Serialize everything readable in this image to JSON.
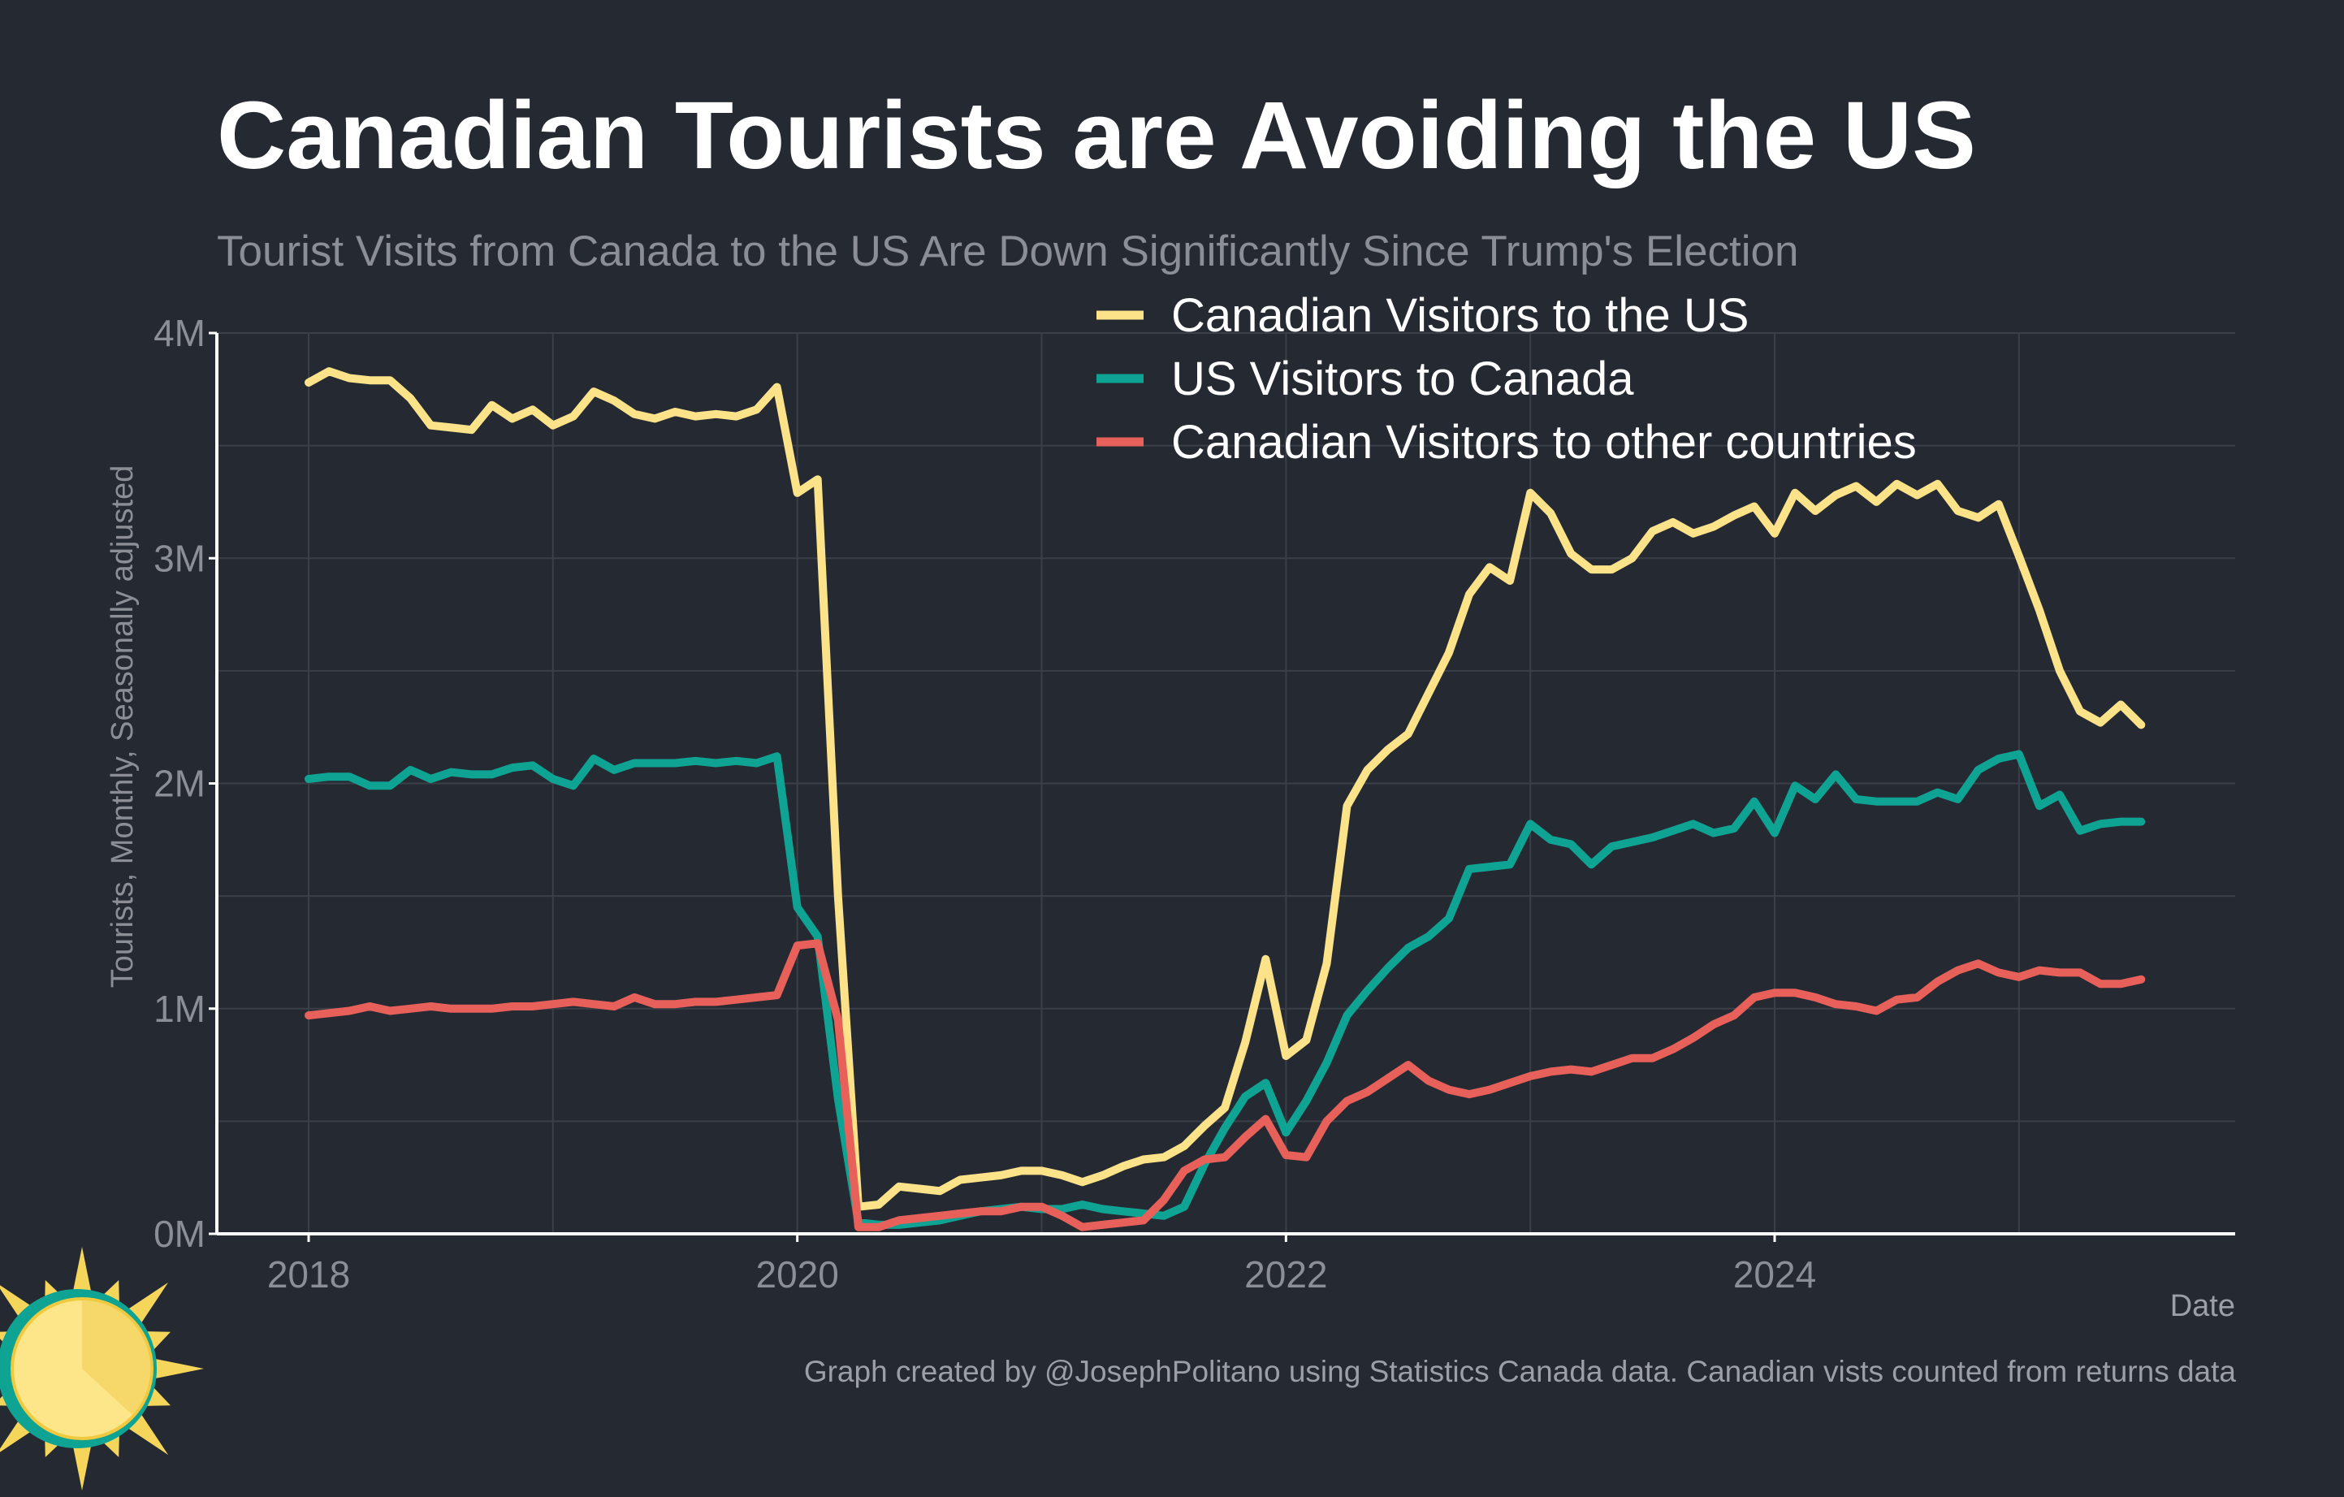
{
  "title": "Canadian Tourists are Avoiding the US",
  "subtitle": "Tourist Visits from Canada to the US Are Down Significantly Since Trump's Election",
  "caption": "Graph created by @JosephPolitano using Statistics Canada data. Canadian vists counted from returns data",
  "logo_icon": "sun-icon",
  "colors": {
    "background": "#252932",
    "grid": "#3b3f48",
    "axis": "#ffffff",
    "canada_to_us": "#fce38a",
    "us_to_canada": "#0fa394",
    "canada_to_other": "#e8605a"
  },
  "chart_data": {
    "type": "line",
    "xlabel": "Date",
    "ylabel": "Tourists, Monthly, Seasonally adjusted",
    "ylim": [
      0,
      4000000
    ],
    "yticks": [
      0,
      1000000,
      2000000,
      3000000,
      4000000
    ],
    "ytick_labels": [
      "0M",
      "1M",
      "2M",
      "3M",
      "4M"
    ],
    "xticks": [
      "2018-01",
      "2020-01",
      "2022-01",
      "2024-01"
    ],
    "xtick_labels": [
      "2018",
      "2020",
      "2022",
      "2024"
    ],
    "grid": true,
    "legend_position": "top-right",
    "x_start": "2018-01",
    "x_end": "2025-06",
    "x_frequency": "monthly",
    "series": [
      {
        "name": "Canadian Visitors to the US",
        "color": "#fce38a",
        "values": [
          3780000,
          3830000,
          3800000,
          3790000,
          3790000,
          3710000,
          3590000,
          3580000,
          3570000,
          3680000,
          3620000,
          3660000,
          3590000,
          3630000,
          3740000,
          3700000,
          3640000,
          3620000,
          3650000,
          3630000,
          3640000,
          3630000,
          3660000,
          3760000,
          3290000,
          3350000,
          1500000,
          120000,
          130000,
          210000,
          200000,
          190000,
          240000,
          250000,
          260000,
          280000,
          280000,
          260000,
          230000,
          260000,
          300000,
          330000,
          340000,
          390000,
          480000,
          560000,
          850000,
          1220000,
          790000,
          860000,
          1200000,
          1900000,
          2060000,
          2150000,
          2220000,
          2400000,
          2580000,
          2840000,
          2960000,
          2900000,
          3290000,
          3200000,
          3020000,
          2950000,
          2950000,
          3000000,
          3120000,
          3160000,
          3110000,
          3140000,
          3190000,
          3230000,
          3110000,
          3290000,
          3210000,
          3280000,
          3320000,
          3250000,
          3330000,
          3280000,
          3330000,
          3210000,
          3180000,
          3240000,
          3010000,
          2770000,
          2500000,
          2320000,
          2270000,
          2350000,
          2260000
        ]
      },
      {
        "name": "US Visitors to Canada",
        "color": "#0fa394",
        "values": [
          2020000,
          2030000,
          2030000,
          1990000,
          1990000,
          2060000,
          2020000,
          2050000,
          2040000,
          2040000,
          2070000,
          2080000,
          2020000,
          1990000,
          2110000,
          2060000,
          2090000,
          2090000,
          2090000,
          2100000,
          2090000,
          2100000,
          2090000,
          2120000,
          1450000,
          1320000,
          600000,
          50000,
          40000,
          40000,
          50000,
          60000,
          80000,
          100000,
          110000,
          120000,
          110000,
          110000,
          130000,
          110000,
          100000,
          90000,
          80000,
          120000,
          310000,
          470000,
          610000,
          670000,
          450000,
          590000,
          760000,
          970000,
          1080000,
          1180000,
          1270000,
          1320000,
          1400000,
          1620000,
          1630000,
          1640000,
          1820000,
          1750000,
          1730000,
          1640000,
          1720000,
          1740000,
          1760000,
          1790000,
          1820000,
          1780000,
          1800000,
          1920000,
          1780000,
          1990000,
          1930000,
          2040000,
          1930000,
          1920000,
          1920000,
          1920000,
          1960000,
          1930000,
          2060000,
          2110000,
          2130000,
          1900000,
          1950000,
          1790000,
          1820000,
          1830000,
          1830000
        ]
      },
      {
        "name": "Canadian Visitors to other countries",
        "color": "#e8605a",
        "values": [
          970000,
          980000,
          990000,
          1010000,
          990000,
          1000000,
          1010000,
          1000000,
          1000000,
          1000000,
          1010000,
          1010000,
          1020000,
          1030000,
          1020000,
          1010000,
          1050000,
          1020000,
          1020000,
          1030000,
          1030000,
          1040000,
          1050000,
          1060000,
          1280000,
          1290000,
          950000,
          30000,
          30000,
          60000,
          70000,
          80000,
          90000,
          100000,
          100000,
          120000,
          120000,
          80000,
          30000,
          40000,
          50000,
          60000,
          150000,
          280000,
          330000,
          340000,
          430000,
          510000,
          350000,
          340000,
          500000,
          590000,
          630000,
          690000,
          750000,
          680000,
          640000,
          620000,
          640000,
          670000,
          700000,
          720000,
          730000,
          720000,
          750000,
          780000,
          780000,
          820000,
          870000,
          930000,
          970000,
          1050000,
          1070000,
          1070000,
          1050000,
          1020000,
          1010000,
          990000,
          1040000,
          1050000,
          1120000,
          1170000,
          1200000,
          1160000,
          1140000,
          1170000,
          1160000,
          1160000,
          1110000,
          1110000,
          1130000
        ]
      }
    ]
  }
}
